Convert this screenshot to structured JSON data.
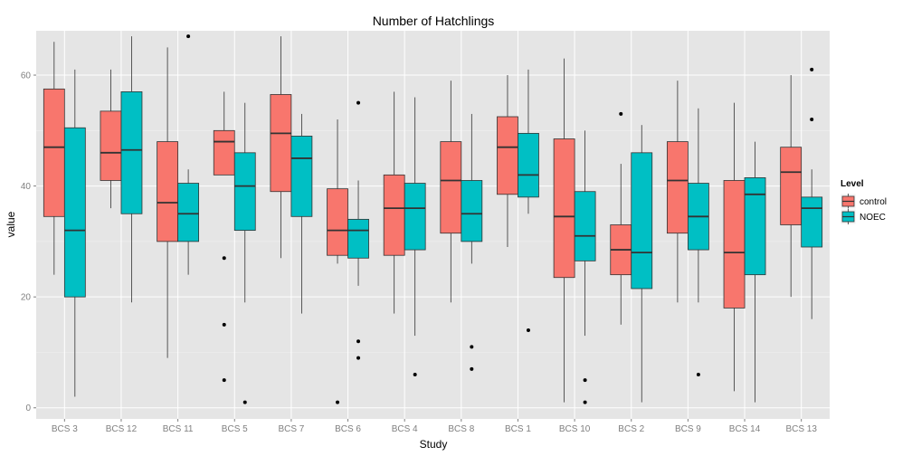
{
  "chart_data": {
    "type": "boxplot",
    "title": "Number of Hatchlings",
    "xlabel": "Study",
    "ylabel": "value",
    "ylim": [
      -2,
      68
    ],
    "yticks": [
      0,
      20,
      40,
      60
    ],
    "grid": true,
    "legend": {
      "title": "Level",
      "placement": "right"
    },
    "categories": [
      "BCS 3",
      "BCS 12",
      "BCS 11",
      "BCS 5",
      "BCS 7",
      "BCS 6",
      "BCS 4",
      "BCS 8",
      "BCS 1",
      "BCS 10",
      "BCS 2",
      "BCS 9",
      "BCS 14",
      "BCS 13"
    ],
    "series": [
      {
        "name": "control",
        "color": "#F8766D",
        "boxes": [
          {
            "min": 24,
            "q1": 34.5,
            "median": 47,
            "q3": 57.5,
            "max": 66,
            "outliers": []
          },
          {
            "min": 36,
            "q1": 41,
            "median": 46,
            "q3": 53.5,
            "max": 61,
            "outliers": []
          },
          {
            "min": 9,
            "q1": 30,
            "median": 37,
            "q3": 48,
            "max": 65,
            "outliers": []
          },
          {
            "min": 42,
            "q1": 42,
            "median": 48,
            "q3": 50,
            "max": 57,
            "outliers": [
              27,
              15,
              5
            ]
          },
          {
            "min": 27,
            "q1": 39,
            "median": 49.5,
            "q3": 56.5,
            "max": 67,
            "outliers": []
          },
          {
            "min": 26,
            "q1": 27.5,
            "median": 32,
            "q3": 39.5,
            "max": 52,
            "outliers": [
              1
            ]
          },
          {
            "min": 17,
            "q1": 27.5,
            "median": 36,
            "q3": 42,
            "max": 57,
            "outliers": []
          },
          {
            "min": 19,
            "q1": 31.5,
            "median": 41,
            "q3": 48,
            "max": 59,
            "outliers": []
          },
          {
            "min": 29,
            "q1": 38.5,
            "median": 47,
            "q3": 52.5,
            "max": 60,
            "outliers": []
          },
          {
            "min": 1,
            "q1": 23.5,
            "median": 34.5,
            "q3": 48.5,
            "max": 63,
            "outliers": []
          },
          {
            "min": 15,
            "q1": 24,
            "median": 28.5,
            "q3": 33,
            "max": 44,
            "outliers": [
              53
            ]
          },
          {
            "min": 19,
            "q1": 31.5,
            "median": 41,
            "q3": 48,
            "max": 59,
            "outliers": []
          },
          {
            "min": 3,
            "q1": 18,
            "median": 28,
            "q3": 41,
            "max": 55,
            "outliers": []
          },
          {
            "min": 20,
            "q1": 33,
            "median": 42.5,
            "q3": 47,
            "max": 60,
            "outliers": []
          }
        ]
      },
      {
        "name": "NOEC",
        "color": "#00BFC4",
        "boxes": [
          {
            "min": 2,
            "q1": 20,
            "median": 32,
            "q3": 50.5,
            "max": 61,
            "outliers": []
          },
          {
            "min": 19,
            "q1": 35,
            "median": 46.5,
            "q3": 57,
            "max": 67,
            "outliers": []
          },
          {
            "min": 24,
            "q1": 30,
            "median": 35,
            "q3": 40.5,
            "max": 43,
            "outliers": [
              67
            ]
          },
          {
            "min": 19,
            "q1": 32,
            "median": 40,
            "q3": 46,
            "max": 55,
            "outliers": [
              1
            ]
          },
          {
            "min": 17,
            "q1": 34.5,
            "median": 45,
            "q3": 49,
            "max": 53,
            "outliers": []
          },
          {
            "min": 22,
            "q1": 27,
            "median": 32,
            "q3": 34,
            "max": 41,
            "outliers": [
              55,
              12,
              9
            ]
          },
          {
            "min": 13,
            "q1": 28.5,
            "median": 36,
            "q3": 40.5,
            "max": 56,
            "outliers": [
              6
            ]
          },
          {
            "min": 26,
            "q1": 30,
            "median": 35,
            "q3": 41,
            "max": 53,
            "outliers": [
              11,
              7
            ]
          },
          {
            "min": 35,
            "q1": 38,
            "median": 42,
            "q3": 49.5,
            "max": 61,
            "outliers": [
              14
            ]
          },
          {
            "min": 13,
            "q1": 26.5,
            "median": 31,
            "q3": 39,
            "max": 50,
            "outliers": [
              5,
              1
            ]
          },
          {
            "min": 1,
            "q1": 21.5,
            "median": 28,
            "q3": 46,
            "max": 51,
            "outliers": []
          },
          {
            "min": 19,
            "q1": 28.5,
            "median": 34.5,
            "q3": 40.5,
            "max": 54,
            "outliers": [
              6
            ]
          },
          {
            "min": 1,
            "q1": 24,
            "median": 38.5,
            "q3": 41.5,
            "max": 48,
            "outliers": []
          },
          {
            "min": 16,
            "q1": 29,
            "median": 36,
            "q3": 38,
            "max": 43,
            "outliers": [
              61,
              52
            ]
          }
        ]
      }
    ]
  }
}
